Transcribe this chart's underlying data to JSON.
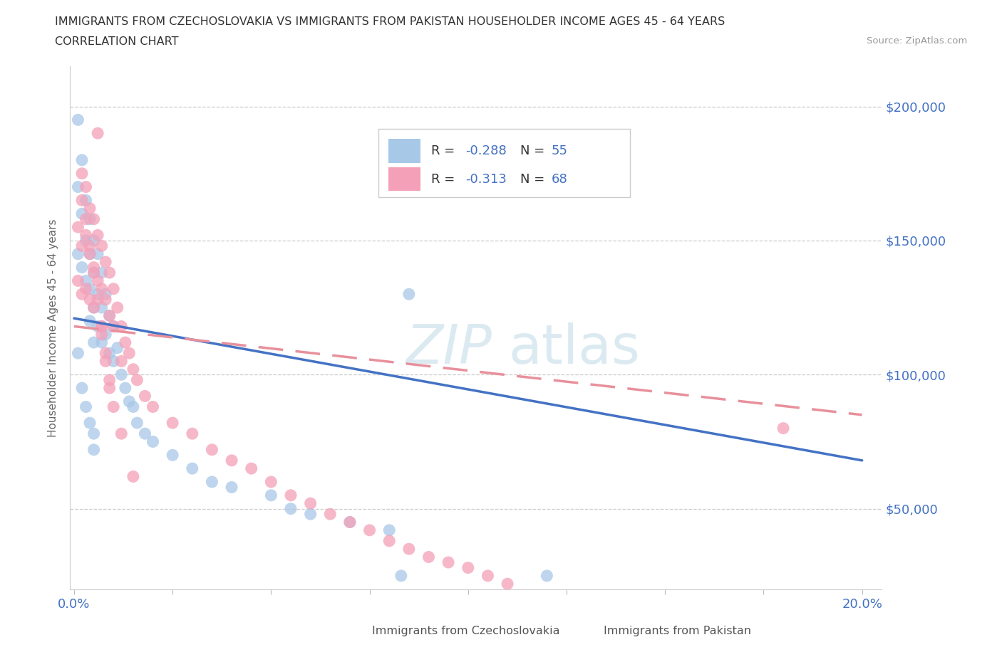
{
  "title_line1": "IMMIGRANTS FROM CZECHOSLOVAKIA VS IMMIGRANTS FROM PAKISTAN HOUSEHOLDER INCOME AGES 45 - 64 YEARS",
  "title_line2": "CORRELATION CHART",
  "source_text": "Source: ZipAtlas.com",
  "ylabel": "Householder Income Ages 45 - 64 years",
  "xlim": [
    -0.001,
    0.205
  ],
  "ylim": [
    20000,
    215000
  ],
  "ytick_positions": [
    50000,
    100000,
    150000,
    200000
  ],
  "ytick_labels": [
    "$50,000",
    "$100,000",
    "$150,000",
    "$200,000"
  ],
  "xtick_positions": [
    0.0,
    0.025,
    0.05,
    0.075,
    0.1,
    0.125,
    0.15,
    0.175,
    0.2
  ],
  "xtick_labels": [
    "0.0%",
    "",
    "",
    "",
    "",
    "",
    "",
    "",
    "20.0%"
  ],
  "color_czech": "#a8c8e8",
  "color_pakistan": "#f4a0b8",
  "color_line_czech": "#4472c4",
  "color_line_pakistan": "#e8909c",
  "czech_N": 55,
  "pakistan_N": 68,
  "czech_R": -0.288,
  "pakistan_R": -0.313,
  "czech_line_x0": 0.0,
  "czech_line_y0": 121000,
  "czech_line_x1": 0.2,
  "czech_line_y1": 68000,
  "pak_line_x0": 0.0,
  "pak_line_y0": 118000,
  "pak_line_x1": 0.2,
  "pak_line_y1": 85000,
  "czech_x": [
    0.001,
    0.001,
    0.001,
    0.002,
    0.002,
    0.002,
    0.003,
    0.003,
    0.003,
    0.004,
    0.004,
    0.004,
    0.004,
    0.005,
    0.005,
    0.005,
    0.005,
    0.006,
    0.006,
    0.006,
    0.007,
    0.007,
    0.007,
    0.008,
    0.008,
    0.009,
    0.009,
    0.01,
    0.01,
    0.011,
    0.012,
    0.013,
    0.014,
    0.015,
    0.016,
    0.018,
    0.02,
    0.025,
    0.03,
    0.035,
    0.04,
    0.05,
    0.055,
    0.06,
    0.07,
    0.08,
    0.001,
    0.002,
    0.003,
    0.004,
    0.005,
    0.083,
    0.12,
    0.085,
    0.005
  ],
  "czech_y": [
    195000,
    170000,
    145000,
    180000,
    160000,
    140000,
    165000,
    150000,
    135000,
    158000,
    145000,
    132000,
    120000,
    150000,
    138000,
    125000,
    112000,
    145000,
    130000,
    118000,
    138000,
    125000,
    112000,
    130000,
    115000,
    122000,
    108000,
    118000,
    105000,
    110000,
    100000,
    95000,
    90000,
    88000,
    82000,
    78000,
    75000,
    70000,
    65000,
    60000,
    58000,
    55000,
    50000,
    48000,
    45000,
    42000,
    108000,
    95000,
    88000,
    82000,
    78000,
    25000,
    25000,
    130000,
    72000
  ],
  "pak_x": [
    0.001,
    0.001,
    0.002,
    0.002,
    0.002,
    0.003,
    0.003,
    0.003,
    0.004,
    0.004,
    0.004,
    0.005,
    0.005,
    0.005,
    0.006,
    0.006,
    0.007,
    0.007,
    0.007,
    0.008,
    0.008,
    0.009,
    0.009,
    0.01,
    0.01,
    0.011,
    0.012,
    0.012,
    0.013,
    0.014,
    0.015,
    0.016,
    0.018,
    0.02,
    0.025,
    0.03,
    0.035,
    0.04,
    0.045,
    0.05,
    0.055,
    0.06,
    0.065,
    0.07,
    0.075,
    0.08,
    0.085,
    0.09,
    0.095,
    0.1,
    0.105,
    0.11,
    0.002,
    0.003,
    0.004,
    0.005,
    0.006,
    0.007,
    0.008,
    0.009,
    0.01,
    0.012,
    0.015,
    0.006,
    0.18,
    0.007,
    0.008,
    0.009
  ],
  "pak_y": [
    155000,
    135000,
    165000,
    148000,
    130000,
    170000,
    152000,
    132000,
    162000,
    145000,
    128000,
    158000,
    140000,
    125000,
    152000,
    135000,
    148000,
    132000,
    118000,
    142000,
    128000,
    138000,
    122000,
    132000,
    118000,
    125000,
    118000,
    105000,
    112000,
    108000,
    102000,
    98000,
    92000,
    88000,
    82000,
    78000,
    72000,
    68000,
    65000,
    60000,
    55000,
    52000,
    48000,
    45000,
    42000,
    38000,
    35000,
    32000,
    30000,
    28000,
    25000,
    22000,
    175000,
    158000,
    148000,
    138000,
    128000,
    118000,
    108000,
    98000,
    88000,
    78000,
    62000,
    190000,
    80000,
    115000,
    105000,
    95000
  ]
}
